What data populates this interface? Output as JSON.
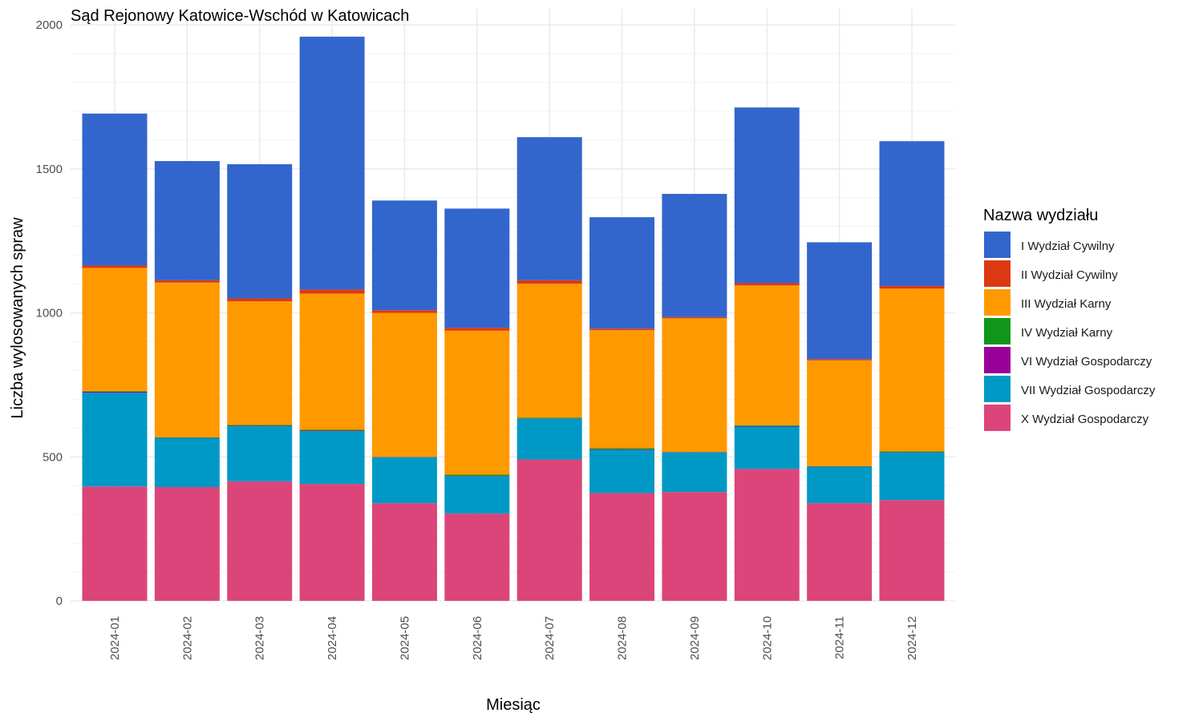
{
  "chart_data": {
    "type": "bar",
    "stacked": true,
    "title": "Sąd Rejonowy Katowice-Wschód w Katowicach",
    "xlabel": "Miesiąc",
    "ylabel": "Liczba wylosowanych spraw",
    "ylim": [
      0,
      2000
    ],
    "yticks": [
      0,
      500,
      1000,
      1500,
      2000
    ],
    "grid": true,
    "legend_title": "Nazwa wydziału",
    "legend_position": "right",
    "categories": [
      "2024-01",
      "2024-02",
      "2024-03",
      "2024-04",
      "2024-05",
      "2024-06",
      "2024-07",
      "2024-08",
      "2024-09",
      "2024-10",
      "2024-11",
      "2024-12"
    ],
    "series": [
      {
        "name": "X Wydział Gospodarczy",
        "color": "#DC4579",
        "values": [
          397,
          395,
          415,
          406,
          339,
          303,
          491,
          374,
          378,
          458,
          339,
          350
        ]
      },
      {
        "name": "VII Wydział Gospodarczy",
        "color": "#0099C6",
        "values": [
          326,
          170,
          191,
          183,
          159,
          130,
          141,
          150,
          137,
          147,
          126,
          165
        ]
      },
      {
        "name": "VI Wydział Gospodarczy",
        "color": "#990099",
        "values": [
          3,
          1,
          2,
          2,
          1,
          1,
          1,
          2,
          1,
          2,
          1,
          1
        ]
      },
      {
        "name": "IV Wydział Karny",
        "color": "#109618",
        "values": [
          2,
          2,
          3,
          3,
          1,
          4,
          3,
          4,
          1,
          3,
          2,
          3
        ]
      },
      {
        "name": "III Wydział Karny",
        "color": "#FF9900",
        "values": [
          428,
          537,
          429,
          473,
          500,
          500,
          465,
          410,
          464,
          485,
          367,
          565
        ]
      },
      {
        "name": "II Wydział Cywilny",
        "color": "#DC3912",
        "values": [
          8,
          8,
          10,
          14,
          9,
          10,
          12,
          5,
          4,
          8,
          4,
          9
        ]
      },
      {
        "name": "I Wydział Cywilny",
        "color": "#3366CC",
        "values": [
          528,
          414,
          466,
          878,
          381,
          414,
          497,
          387,
          428,
          610,
          406,
          503
        ]
      }
    ],
    "legend_order": [
      "I Wydział Cywilny",
      "II Wydział Cywilny",
      "III Wydział Karny",
      "IV Wydział Karny",
      "VI Wydział Gospodarczy",
      "VII Wydział Gospodarczy",
      "X Wydział Gospodarczy"
    ]
  }
}
